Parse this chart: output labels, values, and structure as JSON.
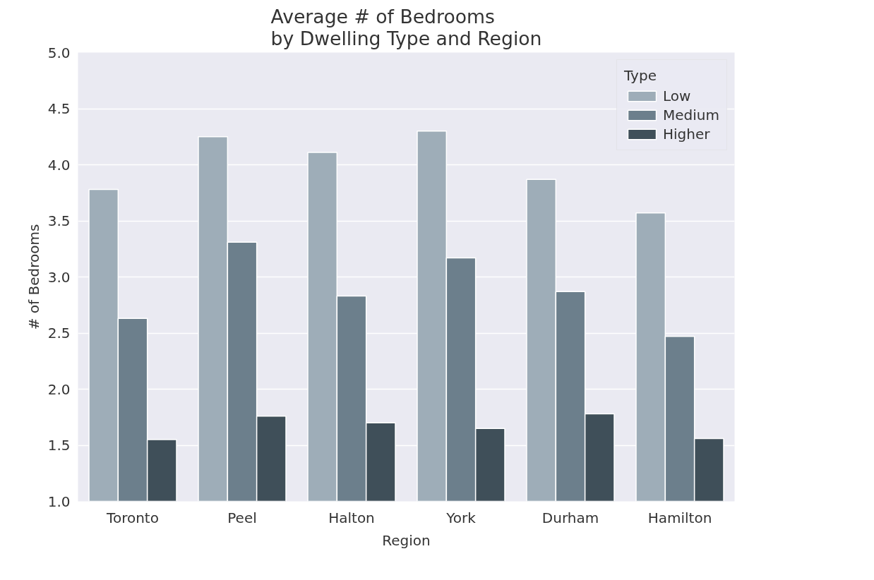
{
  "chart_data": {
    "type": "bar",
    "title": "Average # of Bedrooms\nby Dwelling Type and Region",
    "xlabel": "Region",
    "ylabel": "# of Bedrooms",
    "legend_title": "Type",
    "categories": [
      "Toronto",
      "Peel",
      "Halton",
      "York",
      "Durham",
      "Hamilton"
    ],
    "series": [
      {
        "name": "Low",
        "color": "#9eadb8",
        "values": [
          3.78,
          4.25,
          4.11,
          4.3,
          3.87,
          3.57
        ]
      },
      {
        "name": "Medium",
        "color": "#6c7f8c",
        "values": [
          2.63,
          3.31,
          2.83,
          3.17,
          2.87,
          2.47
        ]
      },
      {
        "name": "Higher",
        "color": "#3f4f59",
        "values": [
          1.55,
          1.76,
          1.7,
          1.65,
          1.78,
          1.56
        ]
      }
    ],
    "ylim": [
      1.0,
      5.0
    ],
    "yticks": [
      {
        "value": 1.0,
        "label": "1.0"
      },
      {
        "value": 1.5,
        "label": "1.5"
      },
      {
        "value": 2.0,
        "label": "2.0"
      },
      {
        "value": 2.5,
        "label": "2.5"
      },
      {
        "value": 3.0,
        "label": "3.0"
      },
      {
        "value": 3.5,
        "label": "3.5"
      },
      {
        "value": 4.0,
        "label": "4.0"
      },
      {
        "value": 4.5,
        "label": "4.5"
      },
      {
        "value": 5.0,
        "label": "5.0"
      }
    ],
    "grid": "y",
    "legend": "top right"
  }
}
